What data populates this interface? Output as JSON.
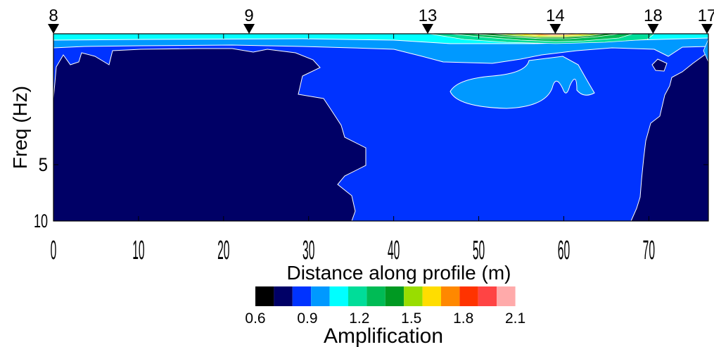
{
  "chart_data": {
    "type": "heatmap",
    "title": "",
    "xlabel": "Distance along profile (m)",
    "ylabel": "Freq (Hz)",
    "xlim": [
      0,
      77
    ],
    "ylim": [
      1,
      10
    ],
    "y_scale": "log",
    "x_ticks": [
      "0",
      "10",
      "20",
      "30",
      "40",
      "50",
      "60",
      "70"
    ],
    "y_ticks": [
      "5",
      "10"
    ],
    "stations": [
      {
        "label": "8",
        "x": 0
      },
      {
        "label": "9",
        "x": 23
      },
      {
        "label": "13",
        "x": 44
      },
      {
        "label": "14",
        "x": 59
      },
      {
        "label": "18",
        "x": 70.5
      },
      {
        "label": "17",
        "x": 77
      }
    ],
    "colorbar": {
      "title": "Amplification",
      "min": 0.6,
      "max": 2.1,
      "step": 0.1,
      "tick_labels": [
        "0.6",
        "0.9",
        "1.2",
        "1.5",
        "1.8",
        "2.1"
      ],
      "colors": [
        "#000000",
        "#000066",
        "#0033ff",
        "#0099ff",
        "#00ffff",
        "#00dd99",
        "#00bb55",
        "#009922",
        "#99dd00",
        "#ffdd00",
        "#ff8800",
        "#ff3300",
        "#ff4444",
        "#ffaaaa"
      ]
    }
  }
}
